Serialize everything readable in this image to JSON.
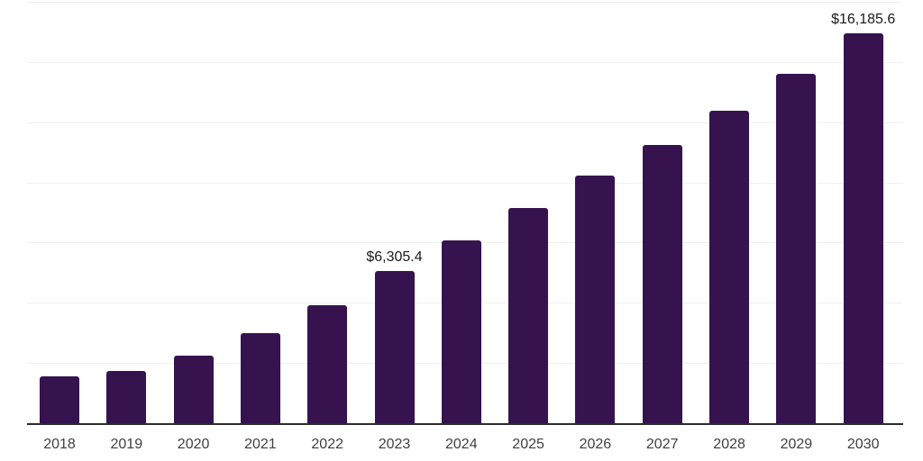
{
  "chart_data": {
    "type": "bar",
    "title": "",
    "xlabel": "",
    "ylabel": "",
    "categories": [
      "2018",
      "2019",
      "2020",
      "2021",
      "2022",
      "2023",
      "2024",
      "2025",
      "2026",
      "2027",
      "2028",
      "2029",
      "2030"
    ],
    "values": [
      1945,
      2170,
      2805,
      3740,
      4900,
      6305.4,
      7610,
      8935,
      10285,
      11555,
      12975,
      14510,
      16185.6
    ],
    "data_labels": [
      "",
      "",
      "",
      "",
      "",
      "$6,305.4",
      "",
      "",
      "",
      "",
      "",
      "",
      "$16,185.6"
    ],
    "ylim": [
      0,
      17500
    ],
    "gridline_step": 2500,
    "grid": "horizontal-only",
    "legend": "none",
    "y_axis_labels": "none",
    "colors": {
      "bar": "#36134E",
      "axis_line": "#2b2b2b",
      "gridline": "#f0f0f0",
      "data_label": "#1a1a1a",
      "tick_label": "#404040",
      "background": "#ffffff"
    }
  }
}
